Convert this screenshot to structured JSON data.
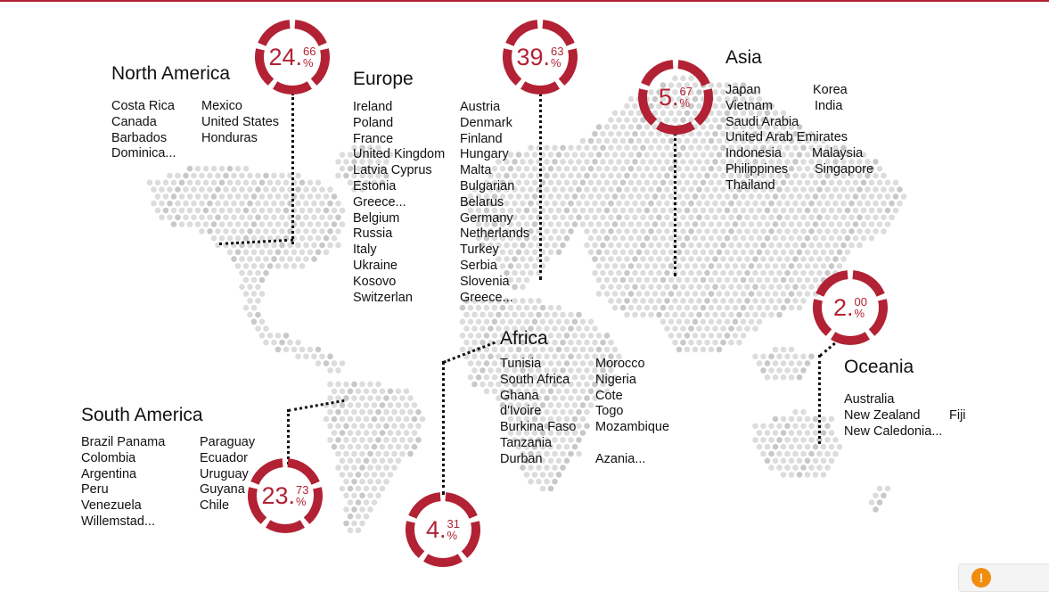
{
  "accent_color": "#b22234",
  "regions": {
    "north_america": {
      "title": "North America",
      "percent_int": "24.",
      "percent_frac": "66",
      "percent_sign": "%",
      "percent_value": 24.66,
      "col1": [
        "Costa Rica",
        "Canada",
        "Barbados",
        "Dominica..."
      ],
      "col2": [
        "Mexico",
        "United States",
        "Honduras"
      ]
    },
    "europe": {
      "title": "Europe",
      "percent_int": "39.",
      "percent_frac": "63",
      "percent_sign": "%",
      "percent_value": 39.63,
      "col1": [
        "Ireland",
        "Poland",
        "France",
        "United Kingdom",
        "Latvia Cyprus",
        "Estonia",
        "Greece...",
        "Belgium",
        "Russia",
        "Italy",
        "Ukraine",
        "Kosovo",
        "Switzerlan"
      ],
      "col2": [
        "Austria",
        "Denmark",
        "Finland",
        "Hungary",
        "Malta",
        "Bulgarian",
        "Belarus",
        "Germany",
        "Netherlands",
        "Turkey",
        "Serbia",
        "Slovenia",
        "Greece..."
      ]
    },
    "asia": {
      "title": "Asia",
      "percent_int": "5.",
      "percent_frac": "67",
      "percent_sign": "%",
      "percent_value": 5.67,
      "rows": [
        [
          "Japan",
          "Korea"
        ],
        [
          "Vietnam",
          "India"
        ],
        [
          "Saudi Arabia",
          ""
        ],
        [
          "United Arab Emirates",
          ""
        ],
        [
          "Indonesia",
          "Malaysia"
        ],
        [
          "Philippines",
          "Singapore"
        ],
        [
          "Thailand",
          ""
        ]
      ]
    },
    "africa": {
      "title": "Africa",
      "percent_int": "4.",
      "percent_frac": "31",
      "percent_sign": "%",
      "percent_value": 4.31,
      "col1": [
        "Tunisia",
        "South Africa",
        "Ghana",
        "d'Ivoire",
        "Burkina Faso",
        "Tanzania",
        "Durban"
      ],
      "col2": [
        "Morocco",
        "Nigeria",
        "Cote",
        "Togo",
        "Mozambique",
        "",
        "Azania..."
      ]
    },
    "south_america": {
      "title": "South America",
      "percent_int": "23.",
      "percent_frac": "73",
      "percent_sign": "%",
      "percent_value": 23.73,
      "col1": [
        "Brazil  Panama",
        "Colombia",
        "Argentina",
        "Peru",
        "Venezuela",
        "Willemstad..."
      ],
      "col2": [
        "Paraguay",
        "Ecuador",
        "Uruguay",
        "Guyana",
        "Chile"
      ]
    },
    "oceania": {
      "title": "Oceania",
      "percent_int": "2.",
      "percent_frac": "00",
      "percent_sign": "%",
      "percent_value": 2.0,
      "col1": [
        "Australia",
        "New Zealand",
        "New Caledonia..."
      ],
      "col2": [
        "",
        "Fiji"
      ]
    }
  },
  "notification": {
    "icon": "alert-icon",
    "label": "!"
  }
}
